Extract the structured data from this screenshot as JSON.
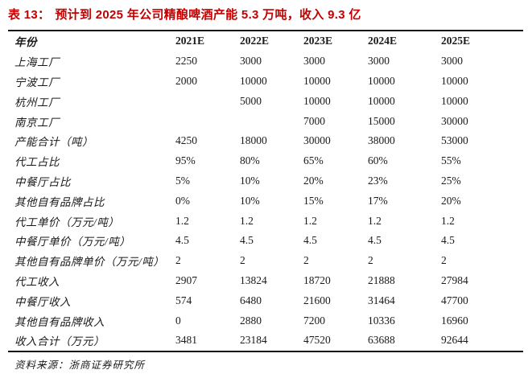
{
  "title": {
    "prefix": "表 13：",
    "text": "预计到 2025 年公司精酿啤酒产能 5.3 万吨，收入 9.3 亿"
  },
  "table": {
    "header": [
      "年份",
      "2021E",
      "2022E",
      "2023E",
      "2024E",
      "2025E"
    ],
    "rows": [
      {
        "label": "上海工厂",
        "values": [
          "2250",
          "3000",
          "3000",
          "3000",
          "3000"
        ]
      },
      {
        "label": "宁波工厂",
        "values": [
          "2000",
          "10000",
          "10000",
          "10000",
          "10000"
        ]
      },
      {
        "label": "杭州工厂",
        "values": [
          "",
          "5000",
          "10000",
          "10000",
          "10000"
        ]
      },
      {
        "label": "南京工厂",
        "values": [
          "",
          "",
          "7000",
          "15000",
          "30000"
        ]
      },
      {
        "label": "产能合计（吨）",
        "values": [
          "4250",
          "18000",
          "30000",
          "38000",
          "53000"
        ]
      },
      {
        "label": "代工占比",
        "values": [
          "95%",
          "80%",
          "65%",
          "60%",
          "55%"
        ]
      },
      {
        "label": "中餐厅占比",
        "values": [
          "5%",
          "10%",
          "20%",
          "23%",
          "25%"
        ]
      },
      {
        "label": "其他自有品牌占比",
        "values": [
          "0%",
          "10%",
          "15%",
          "17%",
          "20%"
        ]
      },
      {
        "label": "代工单价（万元/吨）",
        "values": [
          "1.2",
          "1.2",
          "1.2",
          "1.2",
          "1.2"
        ]
      },
      {
        "label": "中餐厅单价（万元/吨）",
        "values": [
          "4.5",
          "4.5",
          "4.5",
          "4.5",
          "4.5"
        ]
      },
      {
        "label": "其他自有品牌单价（万元/吨）",
        "values": [
          "2",
          "2",
          "2",
          "2",
          "2"
        ]
      },
      {
        "label": "代工收入",
        "values": [
          "2907",
          "13824",
          "18720",
          "21888",
          "27984"
        ]
      },
      {
        "label": "中餐厅收入",
        "values": [
          "574",
          "6480",
          "21600",
          "31464",
          "47700"
        ]
      },
      {
        "label": "其他自有品牌收入",
        "values": [
          "0",
          "2880",
          "7200",
          "10336",
          "16960"
        ]
      },
      {
        "label": "收入合计（万元）",
        "values": [
          "3481",
          "23184",
          "47520",
          "63688",
          "92644"
        ]
      }
    ]
  },
  "source": "资料来源：浙商证券研究所",
  "colors": {
    "accent": "#c40000",
    "text": "#1a1a1a",
    "rule": "#111111"
  }
}
